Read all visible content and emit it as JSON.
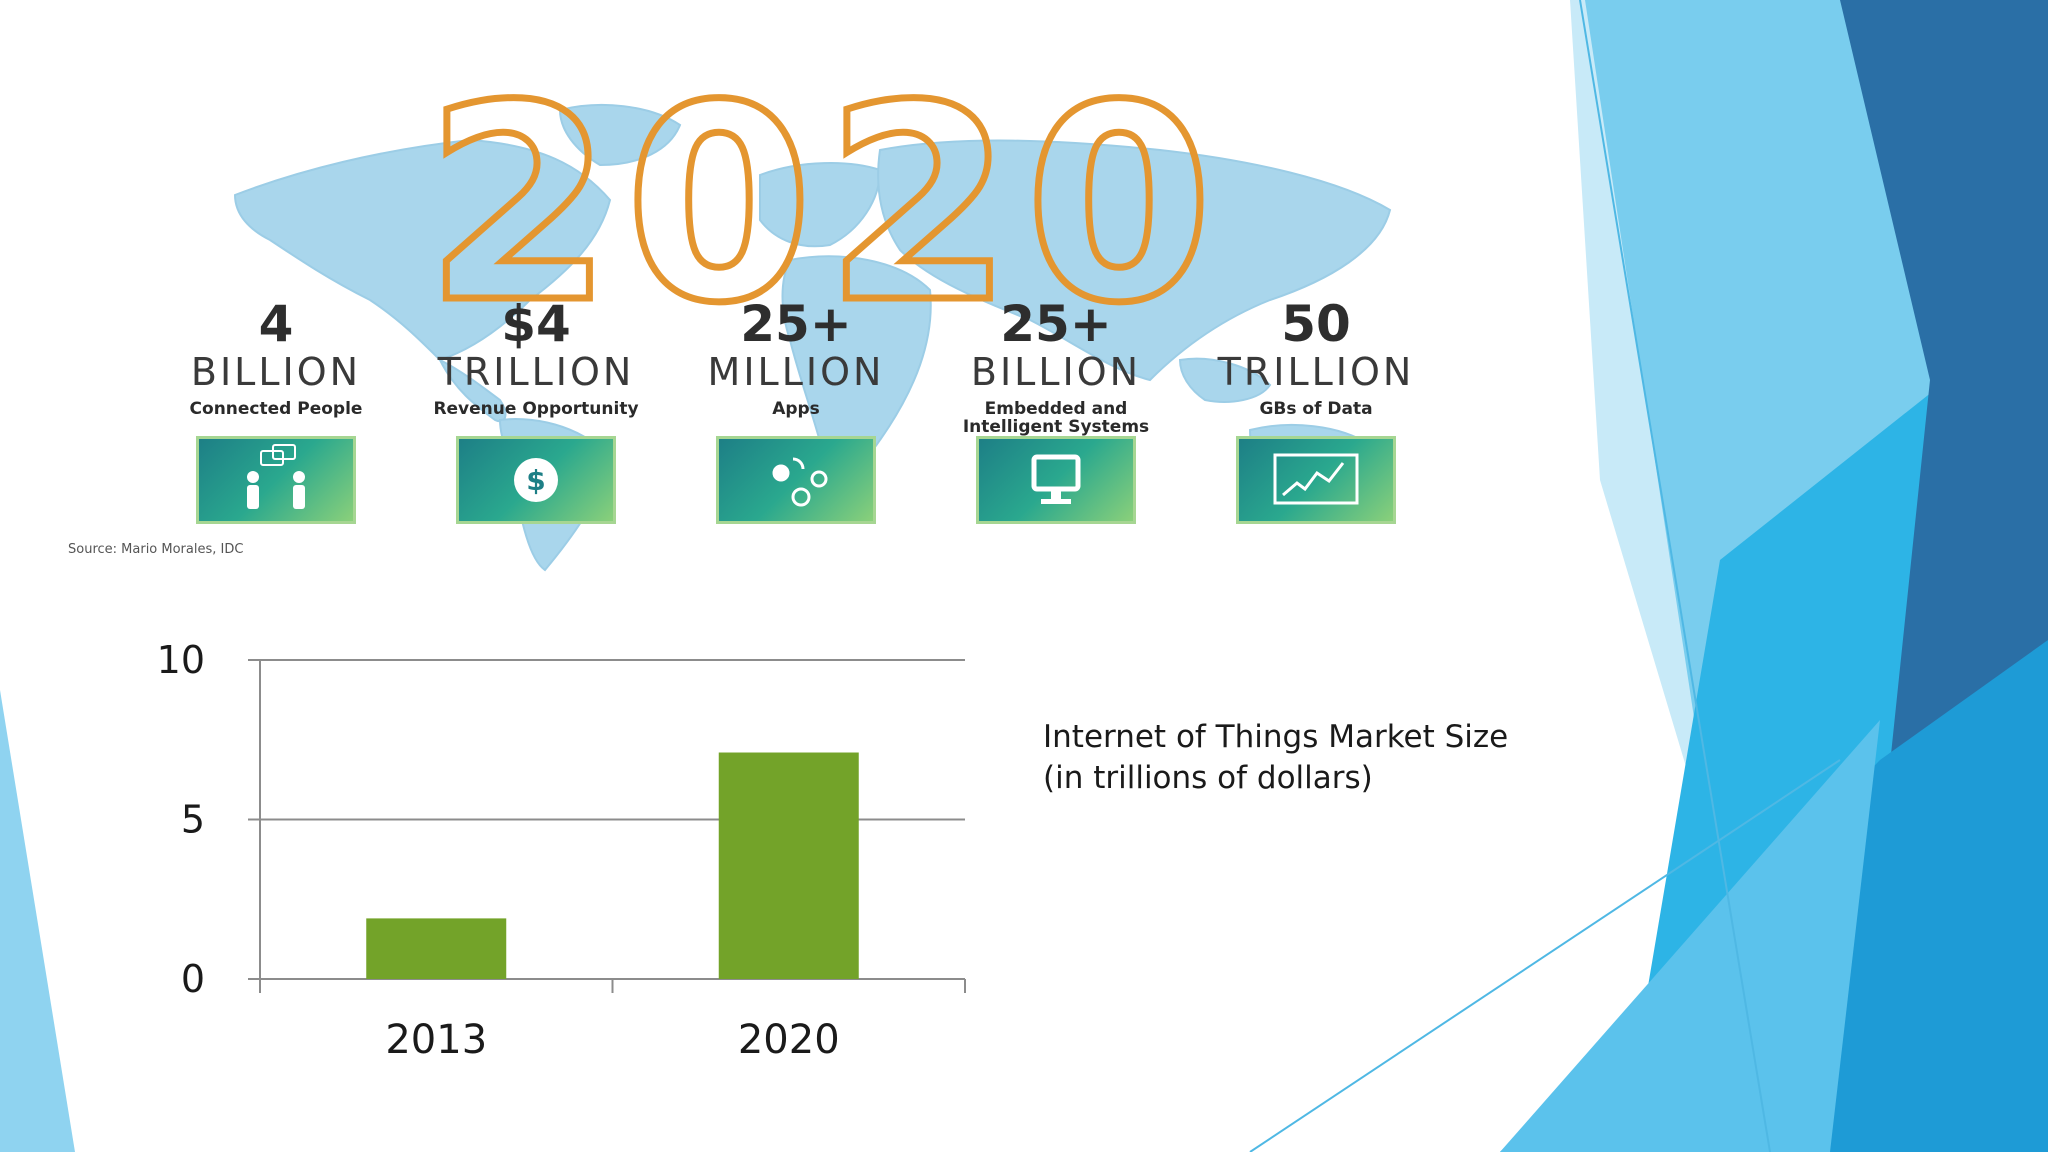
{
  "slide": {
    "infographic": {
      "year": [
        "2",
        "0",
        "2",
        "0"
      ],
      "stats": [
        {
          "number": "4",
          "unit": "BILLION",
          "desc": "Connected People",
          "icon": "people-chat-icon"
        },
        {
          "number": "$4",
          "unit": "TRILLION",
          "desc": "Revenue Opportunity",
          "icon": "dollar-icon"
        },
        {
          "number": "25+",
          "unit": "MILLION",
          "desc": "Apps",
          "icon": "apps-icon"
        },
        {
          "number": "25+",
          "unit": "BILLION",
          "desc": "Embedded and\nIntelligent Systems",
          "icon": "monitor-icon"
        },
        {
          "number": "50",
          "unit": "TRILLION",
          "desc": "GBs of Data",
          "icon": "data-chart-icon"
        }
      ],
      "source": "Source: Mario Morales, IDC"
    },
    "chart_title_line1": "Internet of Things Market Size",
    "chart_title_line2": "(in trillions of dollars)"
  },
  "colors": {
    "year_outline": "#e49630",
    "map_blue": "#a9d6ec",
    "bar_green": "#73a329",
    "grid_gray": "#8c8c8c",
    "decor_dark_blue": "#2a6fa6",
    "decor_mid_blue": "#34a5dd",
    "decor_light_blue": "#8fd3f0"
  },
  "chart_data": {
    "type": "bar",
    "categories": [
      "2013",
      "2020"
    ],
    "values": [
      1.9,
      7.1
    ],
    "ylim": [
      0,
      10
    ],
    "yticks": [
      0,
      5,
      10
    ],
    "grid": true,
    "legend": "none",
    "title": "Internet of Things Market Size",
    "subtitle": "(in trillions of dollars)",
    "xlabel": "",
    "ylabel": ""
  }
}
